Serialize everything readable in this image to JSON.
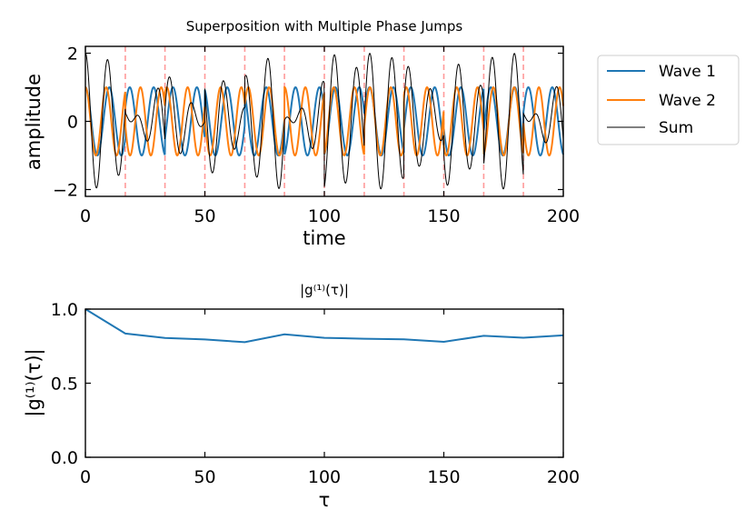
{
  "chart_data": [
    {
      "type": "line",
      "title": "Superposition with Multiple Phase Jumps",
      "xlabel": "time",
      "ylabel": "amplitude",
      "xlim": [
        0,
        200
      ],
      "ylim": [
        -2.2,
        2.2
      ],
      "xticks": [
        0,
        50,
        100,
        150,
        200
      ],
      "yticks": [
        -2,
        0,
        2
      ],
      "grid": false,
      "legend_position": "outside-right",
      "phase_jump_times": [
        16.7,
        33.3,
        50,
        66.7,
        83.3,
        100,
        116.7,
        133.3,
        150,
        166.7,
        183.3
      ],
      "series": [
        {
          "name": "Wave 1",
          "color": "#1f77b4",
          "frequency": 0.1,
          "amplitude": 1.0,
          "phase_offsets": [
            0.0,
            0.9,
            2.1,
            0.4,
            2.7,
            1.3,
            3.4,
            0.7,
            2.4,
            1.8,
            0.2,
            2.9
          ]
        },
        {
          "name": "Wave 2",
          "color": "#ff7f0e",
          "frequency": 0.115,
          "amplitude": 1.0,
          "phase_offsets": [
            0.0,
            2.2,
            0.5,
            3.1,
            1.0,
            2.6,
            0.3,
            1.9,
            3.5,
            0.8,
            2.3,
            1.1
          ]
        },
        {
          "name": "Sum",
          "color": "#000000",
          "components": [
            "Wave 1",
            "Wave 2"
          ]
        }
      ],
      "jump_line_color": "#ff9a9a"
    },
    {
      "type": "line",
      "title": "|g⁽¹⁾(τ)|",
      "xlabel": "τ",
      "ylabel": "|g⁽¹⁾(τ)|",
      "xlim": [
        0,
        200
      ],
      "ylim": [
        0,
        1
      ],
      "xticks": [
        0,
        50,
        100,
        150,
        200
      ],
      "yticks": [
        0.0,
        0.5,
        1.0
      ],
      "grid": false,
      "series": [
        {
          "color": "#1f77b4",
          "x": [
            0,
            16.7,
            33.3,
            50,
            66.7,
            83.3,
            100,
            116.7,
            133.3,
            150,
            166.7,
            183.3,
            200
          ],
          "y": [
            1.0,
            0.835,
            0.805,
            0.795,
            0.777,
            0.83,
            0.806,
            0.8,
            0.796,
            0.779,
            0.82,
            0.807,
            0.823
          ]
        }
      ]
    }
  ],
  "tick_text": {
    "top_x": [
      "0",
      "50",
      "100",
      "150",
      "200"
    ],
    "top_y": [
      "−2",
      "0",
      "2"
    ],
    "bottom_x": [
      "0",
      "50",
      "100",
      "150",
      "200"
    ],
    "bottom_y": [
      "0.0",
      "0.5",
      "1.0"
    ]
  }
}
